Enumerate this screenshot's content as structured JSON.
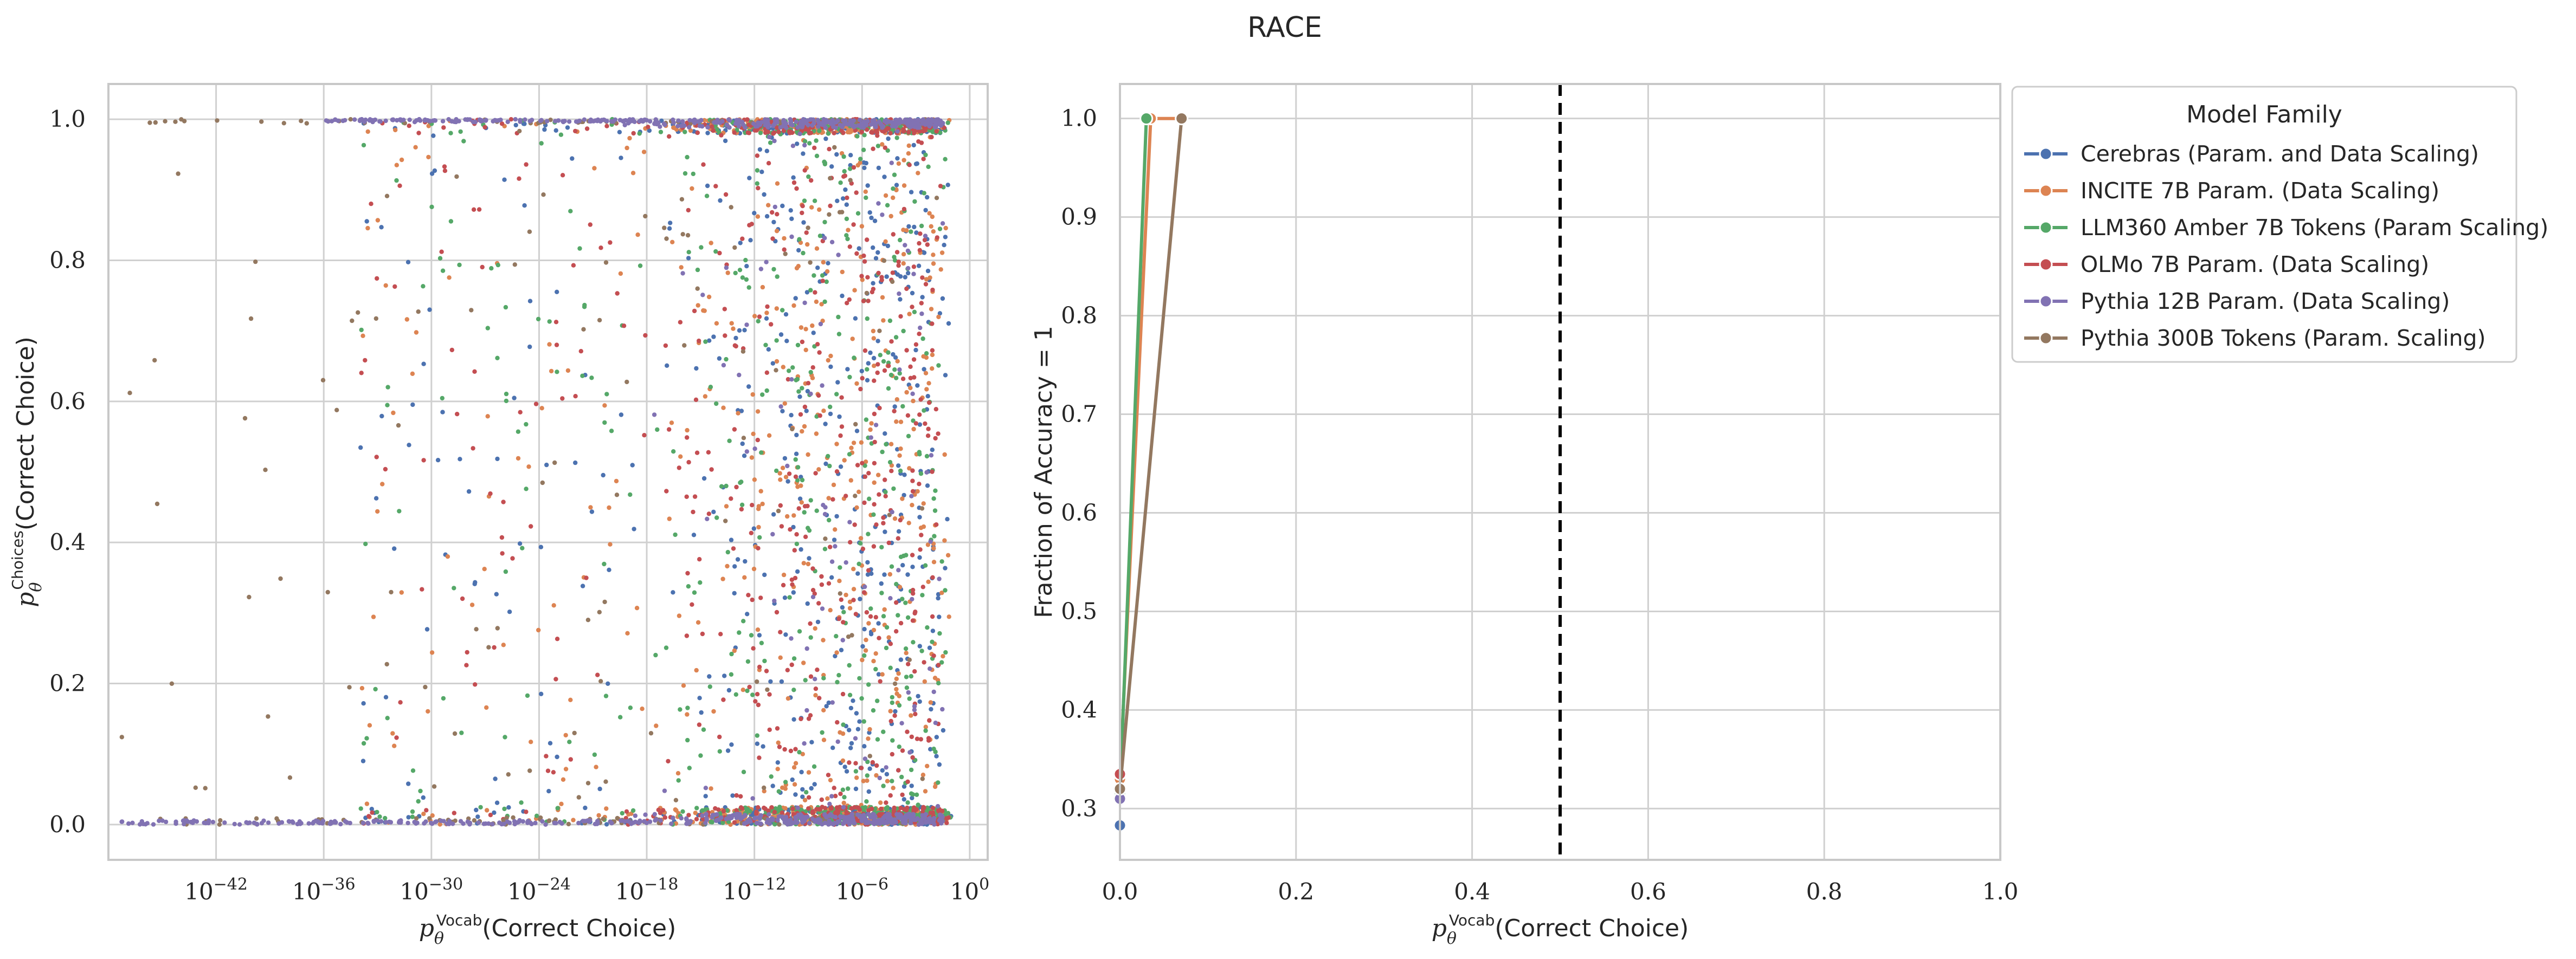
{
  "figure_title": "RACE",
  "colors": {
    "Cerebras": "#4c72b0",
    "INCITE": "#dd8452",
    "LLM360": "#55a868",
    "OLMo": "#c44e52",
    "Pythia12B": "#8172b3",
    "Pythia300B": "#937860",
    "grid": "#d0d0d0",
    "frame": "#c8c8c8",
    "vline": "#000000"
  },
  "chart_data": [
    {
      "type": "scatter",
      "xlabel": {
        "sym": "p",
        "sub": "θ",
        "sup": "Vocab",
        "rest": "(Correct Choice)"
      },
      "ylabel": {
        "sym": "p",
        "sub": "θ",
        "sup": "Choices",
        "rest": "(Correct Choice)"
      },
      "x_scale": "log10",
      "xlim_log10": [
        -48,
        1
      ],
      "ylim": [
        -0.05,
        1.05
      ],
      "x_ticks": [
        {
          "exp": -42,
          "base": "10",
          "sup": "−42"
        },
        {
          "exp": -36,
          "base": "10",
          "sup": "−36"
        },
        {
          "exp": -30,
          "base": "10",
          "sup": "−30"
        },
        {
          "exp": -24,
          "base": "10",
          "sup": "−24"
        },
        {
          "exp": -18,
          "base": "10",
          "sup": "−18"
        },
        {
          "exp": -12,
          "base": "10",
          "sup": "−12"
        },
        {
          "exp": -6,
          "base": "10",
          "sup": "−6"
        },
        {
          "exp": 0,
          "base": "10",
          "sup": "0"
        }
      ],
      "y_ticks": [
        "0.0",
        "0.2",
        "0.4",
        "0.6",
        "0.8",
        "1.0"
      ],
      "grid": true,
      "series": [
        {
          "key": "Cerebras",
          "points": "dense cloud mostly between 1e-18 and 1e-3, values spread 0 to 1, concentrated near 0 and 1"
        },
        {
          "key": "INCITE",
          "points": "dense cloud mostly between 1e-18 and 1e-3"
        },
        {
          "key": "LLM360",
          "points": "dense cloud mostly between 1e-18 and 1e-3"
        },
        {
          "key": "OLMo",
          "points": "dense cloud mostly between 1e-18 and 1e-3"
        },
        {
          "key": "Pythia12B",
          "points": "dense bands along y=0 and y=1 from 1e-20 to 1e-3 plus cloud"
        },
        {
          "key": "Pythia300B",
          "points": "sparse points extending down to 1e-47, bands along y=0 and y=1"
        }
      ]
    },
    {
      "type": "line",
      "xlabel": {
        "sym": "p",
        "sub": "θ",
        "sup": "Vocab",
        "rest": "(Correct Choice)"
      },
      "ylabel": "Fraction of Accuracy = 1",
      "xlim": [
        0.0,
        1.0
      ],
      "ylim": [
        0.248,
        1.035
      ],
      "x_ticks": [
        "0.0",
        "0.2",
        "0.4",
        "0.6",
        "0.8",
        "1.0"
      ],
      "y_ticks": [
        "0.3",
        "0.4",
        "0.5",
        "0.6",
        "0.7",
        "0.8",
        "0.9",
        "1.0"
      ],
      "grid": true,
      "vline_x": 0.5,
      "series": [
        {
          "name": "Cerebras (Param. and Data Scaling)",
          "key": "Cerebras",
          "x": [
            0.0
          ],
          "y": [
            0.283
          ]
        },
        {
          "name": "INCITE 7B Param. (Data Scaling)",
          "key": "INCITE",
          "x": [
            0.0,
            0.035,
            0.07
          ],
          "y": [
            0.33,
            1.0,
            1.0
          ]
        },
        {
          "name": "LLM360 Amber 7B Tokens (Param Scaling)",
          "key": "LLM360",
          "x": [
            0.0,
            0.03
          ],
          "y": [
            0.315,
            1.0
          ]
        },
        {
          "name": "OLMo 7B Param. (Data Scaling)",
          "key": "OLMo",
          "x": [
            0.0
          ],
          "y": [
            0.335
          ]
        },
        {
          "name": "Pythia 12B Param. (Data Scaling)",
          "key": "Pythia12B",
          "x": [
            0.0
          ],
          "y": [
            0.31
          ]
        },
        {
          "name": "Pythia 300B Tokens (Param. Scaling)",
          "key": "Pythia300B",
          "x": [
            0.0,
            0.07
          ],
          "y": [
            0.32,
            1.0
          ]
        }
      ]
    }
  ],
  "legend": {
    "title": "Model Family",
    "placement": "outside right, top",
    "items": [
      "Cerebras (Param. and Data Scaling)",
      "INCITE 7B Param. (Data Scaling)",
      "LLM360 Amber 7B Tokens (Param Scaling)",
      "OLMo 7B Param. (Data Scaling)",
      "Pythia 12B Param. (Data Scaling)",
      "Pythia 300B Tokens (Param. Scaling)"
    ]
  }
}
